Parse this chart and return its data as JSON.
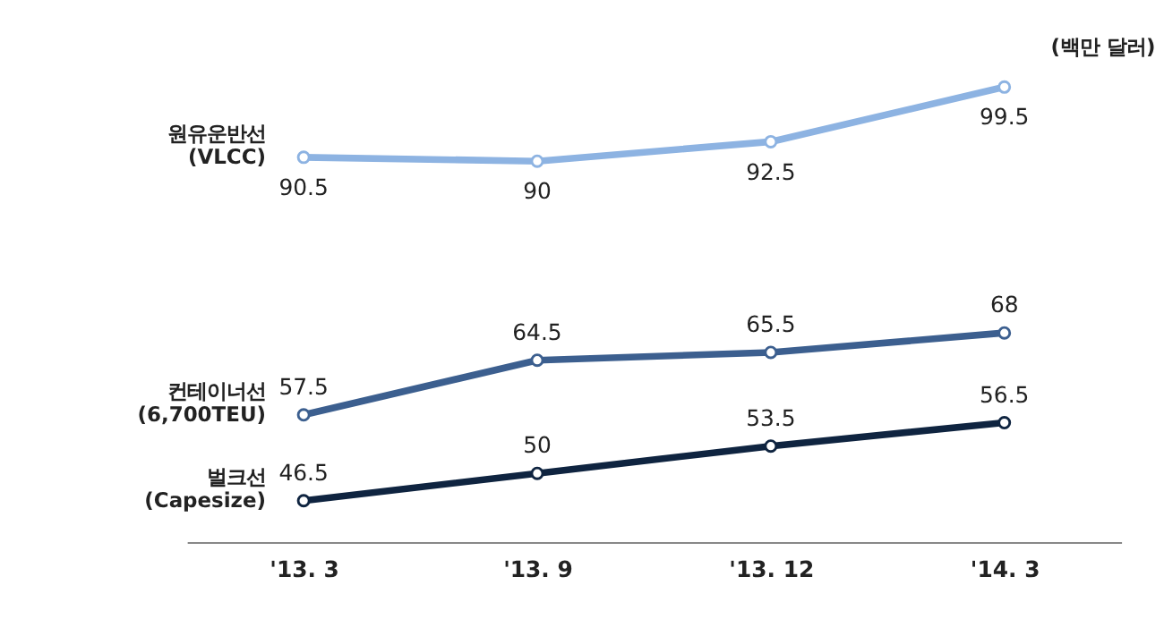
{
  "chart_data": {
    "type": "line",
    "categories": [
      "'13. 3",
      "'13. 9",
      "'13. 12",
      "'14. 3"
    ],
    "series": [
      {
        "name": "원유운반선\n(VLCC)",
        "color": "#8db3e2",
        "values": [
          90.5,
          90,
          92.5,
          99.5
        ]
      },
      {
        "name": "컨테이너선\n(6,700TEU)",
        "color": "#3c5f8f",
        "values": [
          57.5,
          64.5,
          65.5,
          68
        ]
      },
      {
        "name": "벌크선\n(Capesize)",
        "color": "#0f2440",
        "values": [
          46.5,
          50,
          53.5,
          56.5
        ]
      }
    ],
    "annotations": [
      "(백만 달러)"
    ],
    "data_labels": true,
    "marker": "circle",
    "line_style": "solid",
    "legend": false,
    "grid": false
  }
}
